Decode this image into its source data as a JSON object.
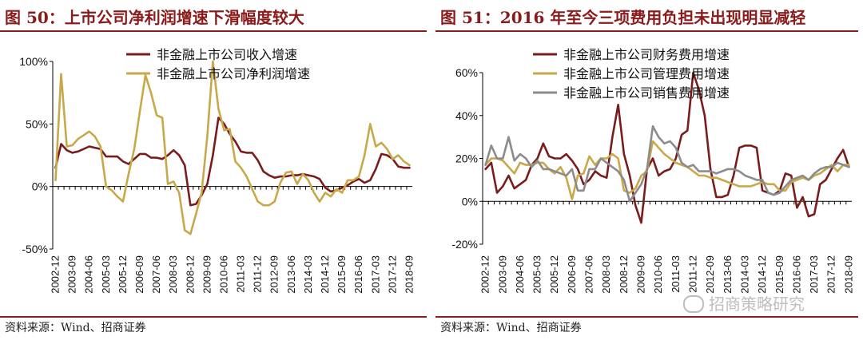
{
  "colors": {
    "title": "#8b1a1a",
    "series_dark": "#7b1c1c",
    "series_gold": "#c9a84a",
    "series_gray": "#8c8c8c"
  },
  "watermark": {
    "text": "招商策略研究",
    "icon": "wechat-icon"
  },
  "chart_data": [
    {
      "type": "line",
      "title": "图 50：上市公司净利润增速下滑幅度较大",
      "source": "资料来源：Wind、招商证券",
      "xlabel": "",
      "ylabel": "",
      "ylim": [
        -50,
        100
      ],
      "yticks": [
        -50,
        0,
        50,
        100
      ],
      "ytick_labels": [
        "-50%",
        "0%",
        "50%",
        "100%"
      ],
      "grid": false,
      "legend": "top-center",
      "x_tick_labels": [
        "2002-12",
        "2003-09",
        "2004-06",
        "2005-03",
        "2005-12",
        "2006-09",
        "2007-06",
        "2008-03",
        "2008-12",
        "2009-09",
        "2010-06",
        "2011-03",
        "2011-12",
        "2012-09",
        "2013-06",
        "2014-03",
        "2014-12",
        "2015-09",
        "2016-06",
        "2017-03",
        "2017-12",
        "2018-09"
      ],
      "x": [
        "2002-12",
        "2003-03",
        "2003-06",
        "2003-09",
        "2003-12",
        "2004-03",
        "2004-06",
        "2004-09",
        "2004-12",
        "2005-03",
        "2005-06",
        "2005-09",
        "2005-12",
        "2006-03",
        "2006-06",
        "2006-09",
        "2006-12",
        "2007-03",
        "2007-06",
        "2007-09",
        "2007-12",
        "2008-03",
        "2008-06",
        "2008-09",
        "2008-12",
        "2009-03",
        "2009-06",
        "2009-09",
        "2009-12",
        "2010-03",
        "2010-06",
        "2010-09",
        "2010-12",
        "2011-03",
        "2011-06",
        "2011-09",
        "2011-12",
        "2012-03",
        "2012-06",
        "2012-09",
        "2012-12",
        "2013-03",
        "2013-06",
        "2013-09",
        "2013-12",
        "2014-03",
        "2014-06",
        "2014-09",
        "2014-12",
        "2015-03",
        "2015-06",
        "2015-09",
        "2015-12",
        "2016-03",
        "2016-06",
        "2016-09",
        "2016-12",
        "2017-03",
        "2017-06",
        "2017-09",
        "2017-12",
        "2018-03",
        "2018-06",
        "2018-09"
      ],
      "series": [
        {
          "name": "非金融上市公司收入增速",
          "color": "#7b1c1c",
          "values": [
            15,
            34,
            29,
            27,
            28,
            30,
            32,
            31,
            30,
            24,
            24,
            24,
            20,
            18,
            22,
            26,
            26,
            23,
            23,
            22,
            25,
            29,
            25,
            17,
            -15,
            -14,
            -7,
            2,
            25,
            55,
            50,
            42,
            36,
            28,
            27,
            27,
            21,
            12,
            9,
            7,
            8,
            8,
            9,
            9,
            10,
            9,
            8,
            6,
            -1,
            -4,
            -3,
            -1,
            1,
            4,
            6,
            3,
            5,
            14,
            26,
            25,
            22,
            16,
            15,
            15
          ]
        },
        {
          "name": "非金融上市公司净利润增速",
          "color": "#c9a84a",
          "values": [
            5,
            90,
            32,
            33,
            38,
            41,
            44,
            40,
            32,
            0,
            -3,
            -8,
            -12,
            10,
            30,
            60,
            89,
            75,
            57,
            55,
            2,
            4,
            -5,
            -35,
            -38,
            -22,
            -5,
            40,
            100,
            62,
            45,
            46,
            20,
            15,
            8,
            -2,
            -12,
            -15,
            -15,
            -12,
            3,
            11,
            12,
            2,
            10,
            5,
            -5,
            -12,
            -5,
            -8,
            -2,
            -5,
            5,
            5,
            8,
            25,
            50,
            32,
            35,
            30,
            22,
            25,
            20,
            17
          ]
        }
      ]
    },
    {
      "type": "line",
      "title": "图 51：2016 年至今三项费用负担未出现明显减轻",
      "source": "资料来源：Wind、招商证券",
      "xlabel": "",
      "ylabel": "",
      "ylim": [
        -20,
        60
      ],
      "yticks": [
        -20,
        0,
        20,
        40,
        60
      ],
      "ytick_labels": [
        "-20%",
        "0%",
        "20%",
        "40%",
        "60%"
      ],
      "grid": false,
      "legend": "top-center",
      "x_tick_labels": [
        "2002-12",
        "2003-09",
        "2004-06",
        "2005-03",
        "2005-12",
        "2006-09",
        "2007-06",
        "2008-03",
        "2008-12",
        "2009-09",
        "2010-06",
        "2011-03",
        "2011-12",
        "2012-09",
        "2013-06",
        "2014-03",
        "2014-12",
        "2015-09",
        "2016-06",
        "2017-03",
        "2017-12",
        "2018-09"
      ],
      "x": [
        "2002-12",
        "2003-03",
        "2003-06",
        "2003-09",
        "2003-12",
        "2004-03",
        "2004-06",
        "2004-09",
        "2004-12",
        "2005-03",
        "2005-06",
        "2005-09",
        "2005-12",
        "2006-03",
        "2006-06",
        "2006-09",
        "2006-12",
        "2007-03",
        "2007-06",
        "2007-09",
        "2007-12",
        "2008-03",
        "2008-06",
        "2008-09",
        "2008-12",
        "2009-03",
        "2009-06",
        "2009-09",
        "2009-12",
        "2010-03",
        "2010-06",
        "2010-09",
        "2010-12",
        "2011-03",
        "2011-06",
        "2011-09",
        "2011-12",
        "2012-03",
        "2012-06",
        "2012-09",
        "2012-12",
        "2013-03",
        "2013-06",
        "2013-09",
        "2013-12",
        "2014-03",
        "2014-06",
        "2014-09",
        "2014-12",
        "2015-03",
        "2015-06",
        "2015-09",
        "2015-12",
        "2016-03",
        "2016-06",
        "2016-09",
        "2016-12",
        "2017-03",
        "2017-06",
        "2017-09",
        "2017-12",
        "2018-03",
        "2018-06",
        "2018-09"
      ],
      "series": [
        {
          "name": "非金融上市公司财务费用增速",
          "color": "#7b1c1c",
          "values": [
            15,
            18,
            4,
            7,
            12,
            6,
            8,
            10,
            17,
            20,
            27,
            21,
            20,
            20,
            22,
            19,
            15,
            8,
            10,
            14,
            12,
            11,
            30,
            45,
            22,
            12,
            -2,
            -10,
            15,
            20,
            12,
            14,
            15,
            20,
            31,
            33,
            60,
            52,
            40,
            15,
            2,
            2,
            3,
            12,
            25,
            26,
            26,
            25,
            5,
            4,
            3,
            5,
            13,
            12,
            -3,
            2,
            -7,
            -6,
            8,
            10,
            15,
            20,
            24,
            16
          ]
        },
        {
          "name": "非金融上市公司管理费用增速",
          "color": "#c9a84a",
          "values": [
            17,
            20,
            20,
            19,
            16,
            13,
            18,
            17,
            17,
            18,
            18,
            15,
            13,
            16,
            11,
            1,
            12,
            13,
            21,
            17,
            20,
            20,
            22,
            20,
            5,
            4,
            6,
            12,
            14,
            28,
            25,
            22,
            20,
            18,
            17,
            16,
            14,
            12,
            12,
            11,
            11,
            10,
            9,
            8,
            7,
            7,
            7,
            8,
            9,
            8,
            8,
            5,
            5,
            9,
            10,
            11,
            10,
            12,
            13,
            15,
            17,
            14,
            17,
            17
          ]
        },
        {
          "name": "非金融上市公司销售费用增速",
          "color": "#8c8c8c",
          "values": [
            17,
            26,
            20,
            20,
            30,
            19,
            22,
            20,
            16,
            19,
            15,
            15,
            14,
            13,
            12,
            15,
            5,
            5,
            15,
            15,
            20,
            18,
            16,
            14,
            10,
            0,
            4,
            8,
            15,
            35,
            30,
            27,
            28,
            25,
            18,
            16,
            17,
            14,
            14,
            14,
            13,
            14,
            15,
            15,
            14,
            12,
            11,
            10,
            10,
            4,
            3,
            4,
            7,
            10,
            11,
            12,
            10,
            13,
            15,
            16,
            16,
            18,
            17,
            16
          ]
        }
      ]
    }
  ]
}
